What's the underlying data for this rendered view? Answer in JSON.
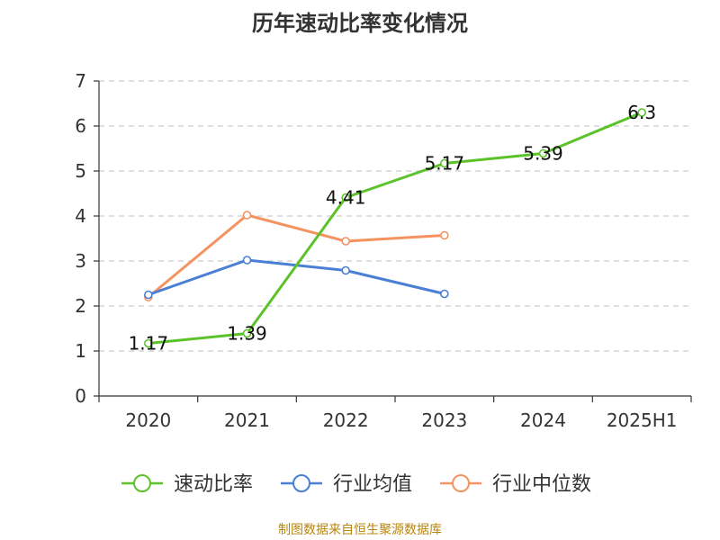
{
  "title": "历年速动比率变化情况",
  "source": "制图数据来自恒生聚源数据库",
  "colors": {
    "quick_ratio": "#5cc22a",
    "industry_mean": "#4a7fd6",
    "industry_median": "#f59360",
    "grid": "#cccccc",
    "axis": "#333333"
  },
  "chart_data": {
    "type": "line",
    "title": "历年速动比率变化情况",
    "categories": [
      "2020",
      "2021",
      "2022",
      "2023",
      "2024",
      "2025H1"
    ],
    "ylim": [
      0,
      7
    ],
    "yticks": [
      0,
      1,
      2,
      3,
      4,
      5,
      6,
      7
    ],
    "grid": true,
    "legend_position": "bottom",
    "series": [
      {
        "name": "速动比率",
        "color_key": "quick_ratio",
        "values": [
          1.17,
          1.39,
          4.41,
          5.17,
          5.39,
          6.3
        ],
        "labels": [
          "1.17",
          "1.39",
          "4.41",
          "5.17",
          "5.39",
          "6.3"
        ]
      },
      {
        "name": "行业均值",
        "color_key": "industry_mean",
        "values": [
          2.25,
          3.02,
          2.79,
          2.27,
          null,
          null
        ]
      },
      {
        "name": "行业中位数",
        "color_key": "industry_median",
        "values": [
          2.2,
          4.02,
          3.44,
          3.57,
          null,
          null
        ]
      }
    ]
  }
}
